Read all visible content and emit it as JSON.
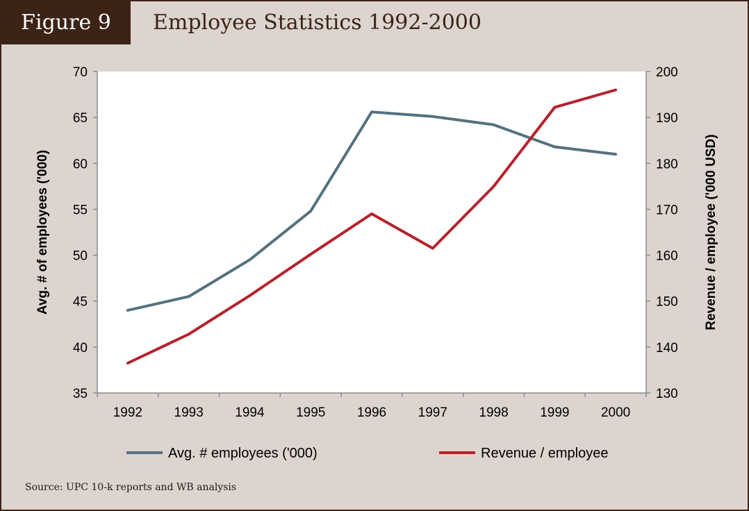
{
  "header": {
    "figure_label": "Figure 9",
    "title": "Employee Statistics 1992-2000"
  },
  "source": "Source: UPC 10-k reports and WB analysis",
  "colors": {
    "frame": "#3b2316",
    "background": "#ddd4cf",
    "plot": "#ffffff",
    "employees": "#54717f",
    "revenue": "#b7212b"
  },
  "chart_data": {
    "type": "line",
    "title": "Employee Statistics 1992-2000",
    "categories": [
      "1992",
      "1993",
      "1994",
      "1995",
      "1996",
      "1997",
      "1998",
      "1999",
      "2000"
    ],
    "y_left": {
      "label": "Avg. # of employees ('000)",
      "ylim": [
        35,
        70
      ],
      "ticks": [
        35,
        40,
        45,
        50,
        55,
        60,
        65,
        70
      ]
    },
    "y_right": {
      "label": "Revenue / employee ('000 USD)",
      "ylim": [
        130,
        200
      ],
      "ticks": [
        130,
        140,
        150,
        160,
        170,
        180,
        190,
        200
      ]
    },
    "series": [
      {
        "name": "Avg. # employees ('000)",
        "axis": "left",
        "color": "#54717f",
        "values": [
          44.0,
          45.5,
          49.5,
          54.8,
          65.6,
          65.1,
          64.2,
          61.8,
          61.0
        ]
      },
      {
        "name": "Revenue / employee",
        "axis": "right",
        "color": "#b7212b",
        "values": [
          136.5,
          142.8,
          151.2,
          160.2,
          169.0,
          161.5,
          175.0,
          192.2,
          196.0
        ]
      }
    ],
    "grid": false,
    "legend": "bottom"
  }
}
